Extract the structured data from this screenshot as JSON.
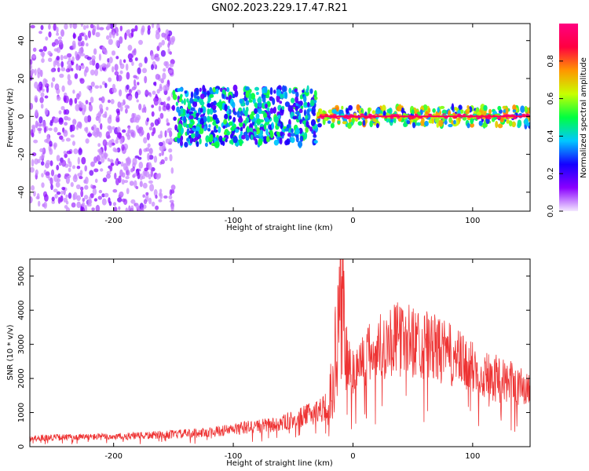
{
  "title": "GN02.2023.229.17.47.R21",
  "chart_data": [
    {
      "type": "heatmap",
      "xlabel": "Height of straight line (km)",
      "ylabel": "Frequency (Hz)",
      "xlim": [
        -270,
        148
      ],
      "ylim": [
        -50,
        49
      ],
      "x_ticks": [
        -200,
        -100,
        0,
        100
      ],
      "y_ticks": [
        -40,
        -20,
        0,
        20,
        40
      ],
      "colorbar": {
        "label": "Normalized spectral amplitude",
        "range": [
          0.0,
          1.0
        ],
        "ticks": [
          "0.0",
          "0.2",
          "0.4",
          "0.6",
          "0.8"
        ],
        "colormap": [
          "#f4e8ff",
          "#8a00ff",
          "#1400ff",
          "#00c8ff",
          "#00ff40",
          "#c8ff00",
          "#ff9600",
          "#ff0040",
          "#ff0080"
        ]
      },
      "regions": [
        {
          "x_range": [
            -270,
            -150
          ],
          "freq_range": [
            -50,
            49
          ],
          "amplitude": 0.1
        },
        {
          "x_range": [
            -150,
            -30
          ],
          "freq_range": [
            -15,
            15
          ],
          "amplitude": 0.35
        },
        {
          "x_range": [
            -30,
            148
          ],
          "freq_range": [
            -5,
            5
          ],
          "amplitude": 0.5
        },
        {
          "x_range": [
            -30,
            148
          ],
          "freq_range": [
            -1,
            1
          ],
          "amplitude": 0.9
        }
      ]
    },
    {
      "type": "line",
      "xlabel": "Height of straight line (km)",
      "ylabel": "SNR (10 * v/v)",
      "xlim": [
        -270,
        148
      ],
      "ylim": [
        0,
        5500
      ],
      "x_ticks": [
        -200,
        -100,
        0,
        100
      ],
      "y_ticks": [
        0,
        1000,
        2000,
        3000,
        4000,
        5000
      ],
      "color": "#ee3333",
      "series": [
        {
          "x": [
            -270,
            -250,
            -230,
            -210,
            -190,
            -170,
            -150,
            -130,
            -110,
            -100,
            -90,
            -80,
            -70,
            -60,
            -50,
            -40,
            -30,
            -20,
            -15,
            -12,
            -10,
            -8,
            -5,
            0,
            10,
            20,
            30,
            40,
            50,
            60,
            70,
            80,
            90,
            100,
            110,
            120,
            130,
            140,
            148
          ],
          "values": [
            250,
            270,
            280,
            290,
            300,
            330,
            360,
            400,
            460,
            500,
            560,
            600,
            620,
            680,
            780,
            900,
            1050,
            1200,
            2500,
            3800,
            5500,
            4000,
            2500,
            2200,
            2600,
            2900,
            3100,
            3150,
            3100,
            3000,
            2850,
            2700,
            2500,
            2300,
            2150,
            2000,
            1900,
            1750,
            1700
          ]
        }
      ]
    }
  ]
}
